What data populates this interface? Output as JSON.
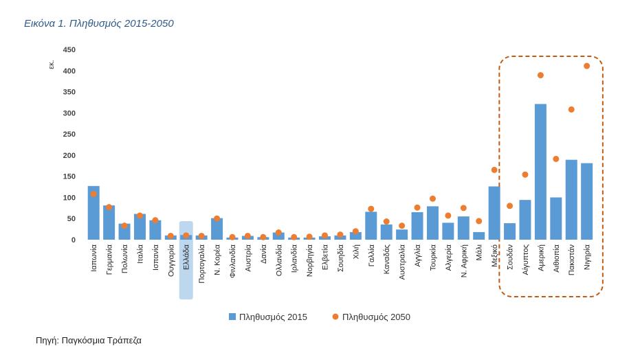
{
  "figure_title": "Εικόνα 1. Πληθυσμός 2015-2050",
  "source_note": "Πηγή: Παγκόσμια Τράπεζα",
  "colors": {
    "bar": "#5b9bd5",
    "dot": "#ed7d31",
    "highlight": "#bdd7ee",
    "box": "#c55a11"
  },
  "chart_data": {
    "type": "bar",
    "ylabel": "εκ.",
    "ylim": [
      0,
      450
    ],
    "yticks": [
      0,
      50,
      100,
      150,
      200,
      250,
      300,
      350,
      400,
      450
    ],
    "grid": false,
    "legend_position": "bottom",
    "highlighted_category": "Ελλάδα",
    "boxed_categories": [
      "Σουδάν",
      "Αίγυπτος",
      "Αμερική",
      "Αιθιοπία",
      "Πακιστάν",
      "Νιγηρία"
    ],
    "categories": [
      "Ιαπωνία",
      "Γερμανία",
      "Πολωνία",
      "Ιταλία",
      "Ισπανία",
      "Ουγγαρία",
      "Ελλάδα",
      "Πορτογαλία",
      "Ν. Κορέα",
      "Φινλανδία",
      "Αυστρία",
      "Δανία",
      "Ολλανδία",
      "Ιρλανδία",
      "Νορβηγία",
      "Ελβετία",
      "Σουηδία",
      "Χιλή",
      "Γαλλία",
      "Καναδάς",
      "Αυστραλία",
      "Αγγλία",
      "Τουρκία",
      "Αλγερία",
      "Ν. Αφρική",
      "Μάλι",
      "Μεξικό",
      "Σουδάν",
      "Αίγυπτος",
      "Αμερική",
      "Αιθιοπία",
      "Πακιστάν",
      "Νιγηρία"
    ],
    "series": [
      {
        "name": "Πληθυσμός 2015",
        "type": "bar",
        "values": [
          127,
          81,
          38,
          61,
          46,
          10,
          11,
          10,
          51,
          5,
          9,
          6,
          17,
          5,
          5,
          8,
          10,
          18,
          66,
          36,
          24,
          65,
          79,
          40,
          55,
          18,
          126,
          39,
          94,
          321,
          100,
          189,
          181
        ]
      },
      {
        "name": "Πληθυσμός 2050",
        "type": "scatter",
        "values": [
          108,
          77,
          33,
          57,
          46,
          9,
          10,
          9,
          50,
          6,
          9,
          6,
          17,
          6,
          7,
          10,
          12,
          20,
          73,
          43,
          33,
          76,
          97,
          57,
          75,
          44,
          165,
          80,
          154,
          389,
          191,
          308,
          411
        ]
      }
    ]
  }
}
